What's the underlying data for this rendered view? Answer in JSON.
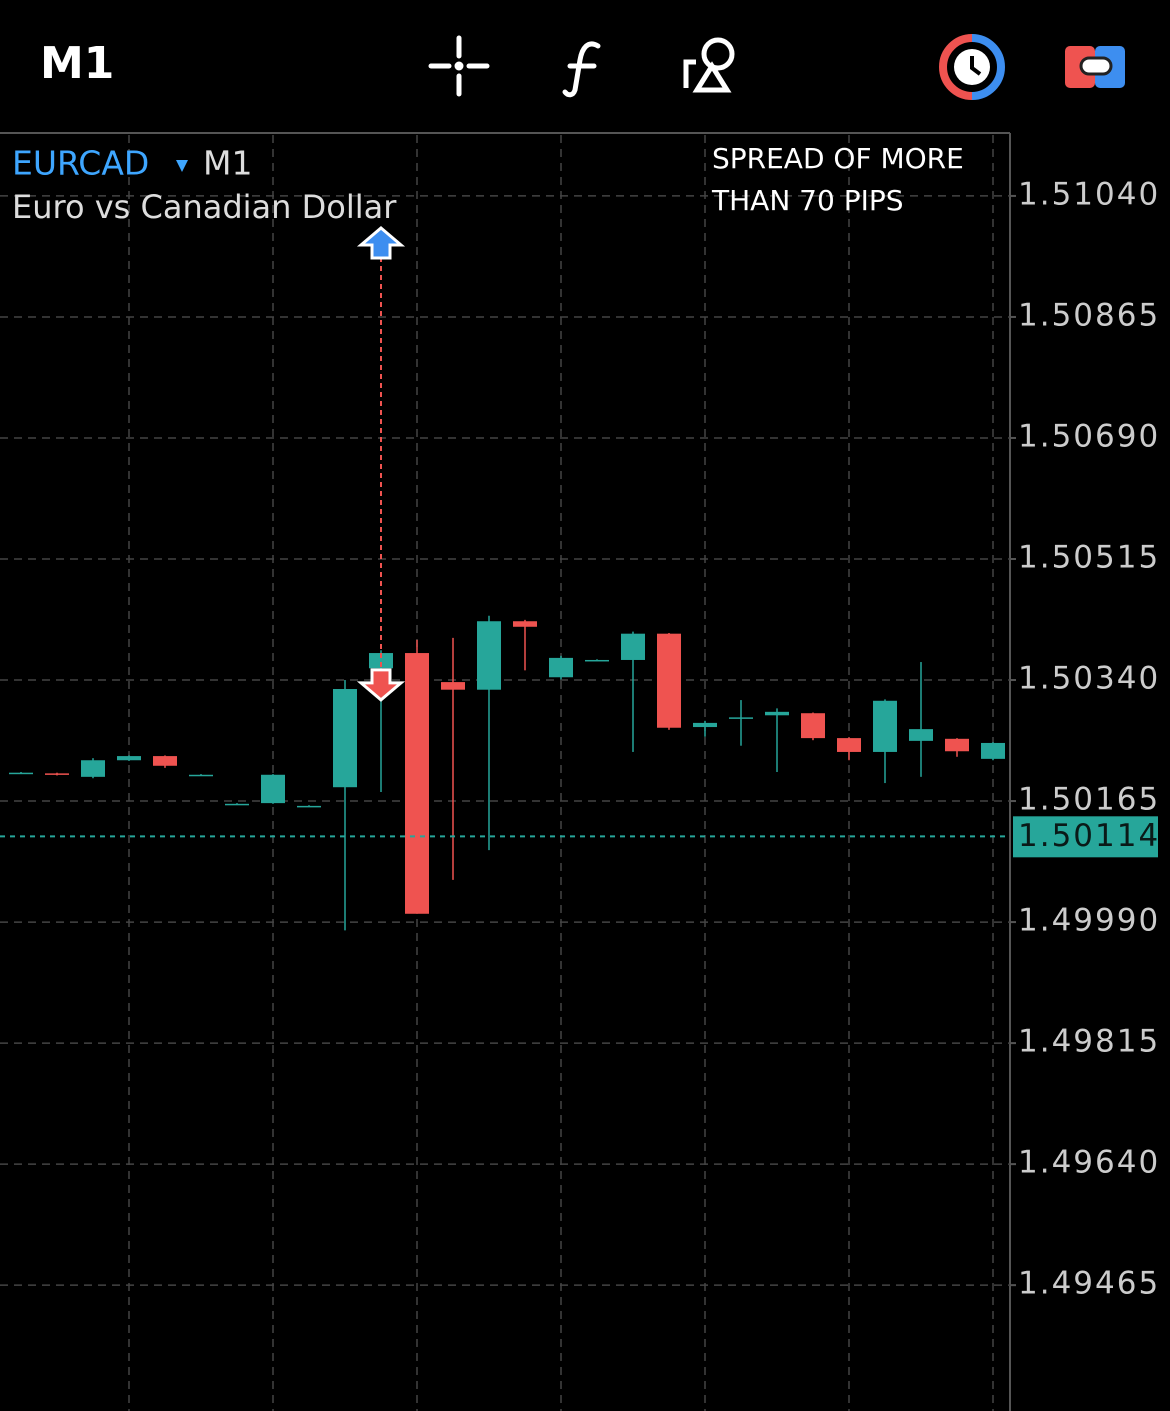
{
  "toolbar": {
    "timeframe": "M1"
  },
  "chart_data": {
    "type": "candlestick",
    "symbol": "EURCAD",
    "timeframe": "M1",
    "subtitle": "Euro vs Canadian Dollar",
    "annotation": [
      "SPREAD OF MORE",
      "THAN 70 PIPS"
    ],
    "up_color": "#26a69a",
    "down_color": "#ef5350",
    "grid": true,
    "ylim": [
      1.49283,
      1.51131
    ],
    "yticks": [
      {
        "value": 1.5104,
        "label": "1.51040"
      },
      {
        "value": 1.50865,
        "label": "1.50865"
      },
      {
        "value": 1.5069,
        "label": "1.50690"
      },
      {
        "value": 1.50515,
        "label": "1.50515"
      },
      {
        "value": 1.5034,
        "label": "1.50340"
      },
      {
        "value": 1.50165,
        "label": "1.50165"
      },
      {
        "value": 1.4999,
        "label": "1.49990"
      },
      {
        "value": 1.49815,
        "label": "1.49815"
      },
      {
        "value": 1.4964,
        "label": "1.49640"
      },
      {
        "value": 1.49465,
        "label": "1.49465"
      }
    ],
    "current_price": 1.50114,
    "buy_marker_price": 1.50972,
    "sell_marker_price": 1.50333,
    "open": [
      1.50206,
      1.50205,
      1.502,
      1.50224,
      1.5023,
      1.50203,
      1.50161,
      1.50162,
      1.50158,
      1.50185,
      1.50357,
      1.50379,
      1.50337,
      1.50326,
      1.50425,
      1.50344,
      1.50369,
      1.50369,
      1.50407,
      1.50272,
      1.50286,
      1.50289,
      1.50292,
      1.50256,
      1.50236,
      1.50252,
      1.50255,
      1.50226
    ],
    "high": [
      1.50207,
      1.50206,
      1.50227,
      1.50231,
      1.50231,
      1.50204,
      1.50162,
      1.50204,
      1.50159,
      1.5034,
      1.50383,
      1.50398,
      1.50401,
      1.50433,
      1.50427,
      1.50375,
      1.5037,
      1.5041,
      1.50408,
      1.50281,
      1.50311,
      1.50299,
      1.50293,
      1.50257,
      1.50312,
      1.50366,
      1.50256,
      1.5025
    ],
    "low": [
      1.50205,
      1.50202,
      1.50198,
      1.50223,
      1.50213,
      1.50202,
      1.5016,
      1.50161,
      1.50157,
      1.49978,
      1.50178,
      1.50002,
      1.50051,
      1.50094,
      1.50354,
      1.50341,
      1.50368,
      1.50236,
      1.50268,
      1.50258,
      1.50245,
      1.50207,
      1.50253,
      1.50224,
      1.50191,
      1.502,
      1.50229,
      1.50224
    ],
    "close": [
      1.50206,
      1.50203,
      1.50224,
      1.5023,
      1.50216,
      1.50203,
      1.50161,
      1.50203,
      1.50158,
      1.50327,
      1.50379,
      1.50002,
      1.50326,
      1.50425,
      1.50417,
      1.50372,
      1.50369,
      1.50407,
      1.50271,
      1.50278,
      1.50286,
      1.50294,
      1.50256,
      1.50236,
      1.5031,
      1.50269,
      1.50237,
      1.50249
    ]
  }
}
